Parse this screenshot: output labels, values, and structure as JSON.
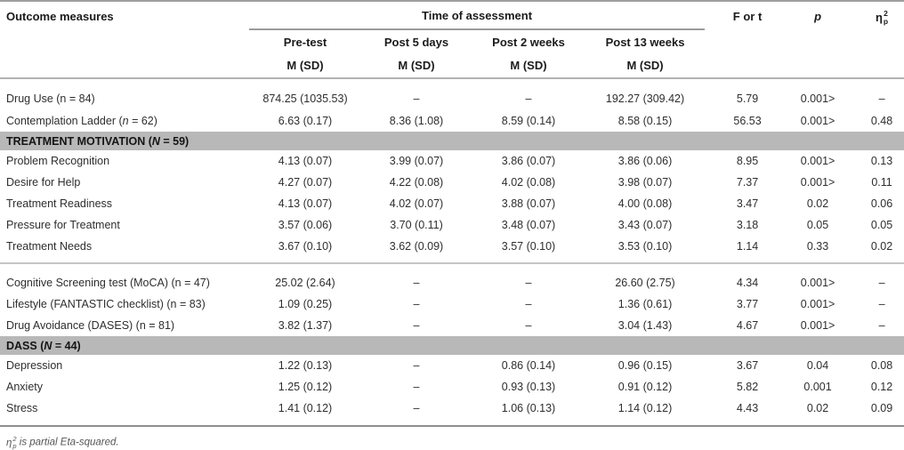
{
  "header": {
    "outcome_col": "Outcome measures",
    "time_span": "Time of assessment",
    "timepoints": [
      "Pre-test",
      "Post 5 days",
      "Post 2 weeks",
      "Post 13 weeks"
    ],
    "msd": "M (SD)",
    "f_or_t": "F or t",
    "p": "p",
    "eta": {
      "base": "η",
      "sup": "2",
      "sub": "p"
    }
  },
  "rows": [
    {
      "type": "data",
      "first": true,
      "label": [
        {
          "t": "Drug Use (n = 84)"
        }
      ],
      "cells": [
        "874.25 (1035.53)",
        "–",
        "–",
        "192.27 (309.42)",
        "5.79",
        "0.001>",
        "–"
      ]
    },
    {
      "type": "data",
      "label": [
        {
          "t": "Contemplation Ladder ("
        },
        {
          "t": "n",
          "i": true
        },
        {
          "t": " = 62)"
        }
      ],
      "cells": [
        "6.63 (0.17)",
        "8.36 (1.08)",
        "8.59 (0.14)",
        "8.58 (0.15)",
        "56.53",
        "0.001>",
        "0.48"
      ]
    },
    {
      "type": "section",
      "label": [
        {
          "t": "TREATMENT MOTIVATION ("
        },
        {
          "t": "N",
          "i": true
        },
        {
          "t": " = 59)"
        }
      ]
    },
    {
      "type": "data",
      "label": [
        {
          "t": "Problem Recognition"
        }
      ],
      "cells": [
        "4.13 (0.07)",
        "3.99 (0.07)",
        "3.86 (0.07)",
        "3.86 (0.06)",
        "8.95",
        "0.001>",
        "0.13"
      ]
    },
    {
      "type": "data",
      "label": [
        {
          "t": "Desire for Help"
        }
      ],
      "cells": [
        "4.27 (0.07)",
        "4.22 (0.08)",
        "4.02 (0.08)",
        "3.98 (0.07)",
        "7.37",
        "0.001>",
        "0.11"
      ]
    },
    {
      "type": "data",
      "label": [
        {
          "t": "Treatment Readiness"
        }
      ],
      "cells": [
        "4.13 (0.07)",
        "4.02 (0.07)",
        "3.88 (0.07)",
        "4.00 (0.08)",
        "3.47",
        "0.02",
        "0.06"
      ]
    },
    {
      "type": "data",
      "label": [
        {
          "t": "Pressure for Treatment"
        }
      ],
      "cells": [
        "3.57 (0.06)",
        "3.70 (0.11)",
        "3.48 (0.07)",
        "3.43 (0.07)",
        "3.18",
        "0.05",
        "0.05"
      ]
    },
    {
      "type": "data",
      "label": [
        {
          "t": "Treatment Needs"
        }
      ],
      "cells": [
        "3.67 (0.10)",
        "3.62 (0.09)",
        "3.57 (0.10)",
        "3.53 (0.10)",
        "1.14",
        "0.33",
        "0.02"
      ],
      "divider_after": true
    },
    {
      "type": "data",
      "label": [
        {
          "t": "Cognitive Screening test (MoCA) (n = 47)"
        }
      ],
      "cells": [
        "25.02 (2.64)",
        "–",
        "–",
        "26.60 (2.75)",
        "4.34",
        "0.001>",
        "–"
      ]
    },
    {
      "type": "data",
      "label": [
        {
          "t": "Lifestyle (FANTASTIC checklist) (n = 83)"
        }
      ],
      "cells": [
        "1.09 (0.25)",
        "–",
        "–",
        "1.36 (0.61)",
        "3.77",
        "0.001>",
        "–"
      ]
    },
    {
      "type": "data",
      "label": [
        {
          "t": "Drug Avoidance (DASES) (n = 81)"
        }
      ],
      "cells": [
        "3.82 (1.37)",
        "–",
        "–",
        "3.04 (1.43)",
        "4.67",
        "0.001>",
        "–"
      ]
    },
    {
      "type": "section",
      "label": [
        {
          "t": "DASS ("
        },
        {
          "t": "N",
          "i": true
        },
        {
          "t": " = 44)"
        }
      ]
    },
    {
      "type": "data",
      "label": [
        {
          "t": "Depression"
        }
      ],
      "cells": [
        "1.22 (0.13)",
        "–",
        "0.86 (0.14)",
        "0.96 (0.15)",
        "3.67",
        "0.04",
        "0.08"
      ]
    },
    {
      "type": "data",
      "label": [
        {
          "t": "Anxiety"
        }
      ],
      "cells": [
        "1.25 (0.12)",
        "–",
        "0.93 (0.13)",
        "0.91 (0.12)",
        "5.82",
        "0.001",
        "0.12"
      ]
    },
    {
      "type": "data",
      "label": [
        {
          "t": "Stress"
        }
      ],
      "cells": [
        "1.41 (0.12)",
        "–",
        "1.06 (0.13)",
        "1.14 (0.12)",
        "4.43",
        "0.02",
        "0.09"
      ]
    }
  ],
  "footnote": {
    "eta": {
      "base": "η",
      "sup": "2",
      "sub": "p"
    },
    "text": " is partial Eta-squared."
  },
  "colors": {
    "section_band": "#b8b8b8",
    "rule_dark": "#9e9e9e",
    "rule_light": "#c6c6c6",
    "text": "#2e2e2e"
  }
}
